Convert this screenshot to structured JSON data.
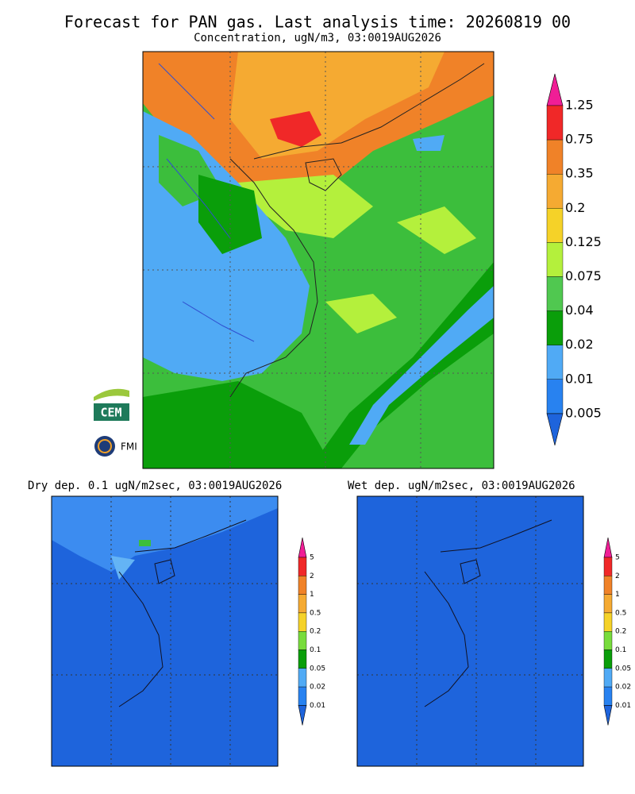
{
  "header": {
    "title": "Forecast for PAN gas. Last analysis time: 20260819 00",
    "subtitle": "Concentration, ugN/m3, 03:0019AUG2026"
  },
  "logos": {
    "cem": "CEM",
    "fmi": "FMI"
  },
  "main_legend": {
    "labels": [
      "1.25",
      "0.75",
      "0.35",
      "0.2",
      "0.125",
      "0.075",
      "0.04",
      "0.02",
      "0.01",
      "0.005"
    ],
    "colors": [
      "#f01e96",
      "#f02828",
      "#f08228",
      "#f5aa32",
      "#f5d228",
      "#b4f03c",
      "#50c850",
      "#0a9e0a",
      "#50aaf5",
      "#2882f0",
      "#1e64dc"
    ]
  },
  "panels": [
    {
      "title": "Dry dep. 0.1 ugN/m2sec, 03:0019AUG2026"
    },
    {
      "title": "Wet dep. ugN/m2sec, 03:0019AUG2026"
    }
  ],
  "small_legend": {
    "labels": [
      "5",
      "2",
      "1",
      "0.5",
      "0.2",
      "0.1",
      "0.05",
      "0.02",
      "0.01"
    ],
    "colors": [
      "#f01e96",
      "#f02828",
      "#f08228",
      "#f5aa32",
      "#f5d228",
      "#78dc3c",
      "#0a9e0a",
      "#50aaf5",
      "#2882f0",
      "#1e64dc"
    ]
  }
}
